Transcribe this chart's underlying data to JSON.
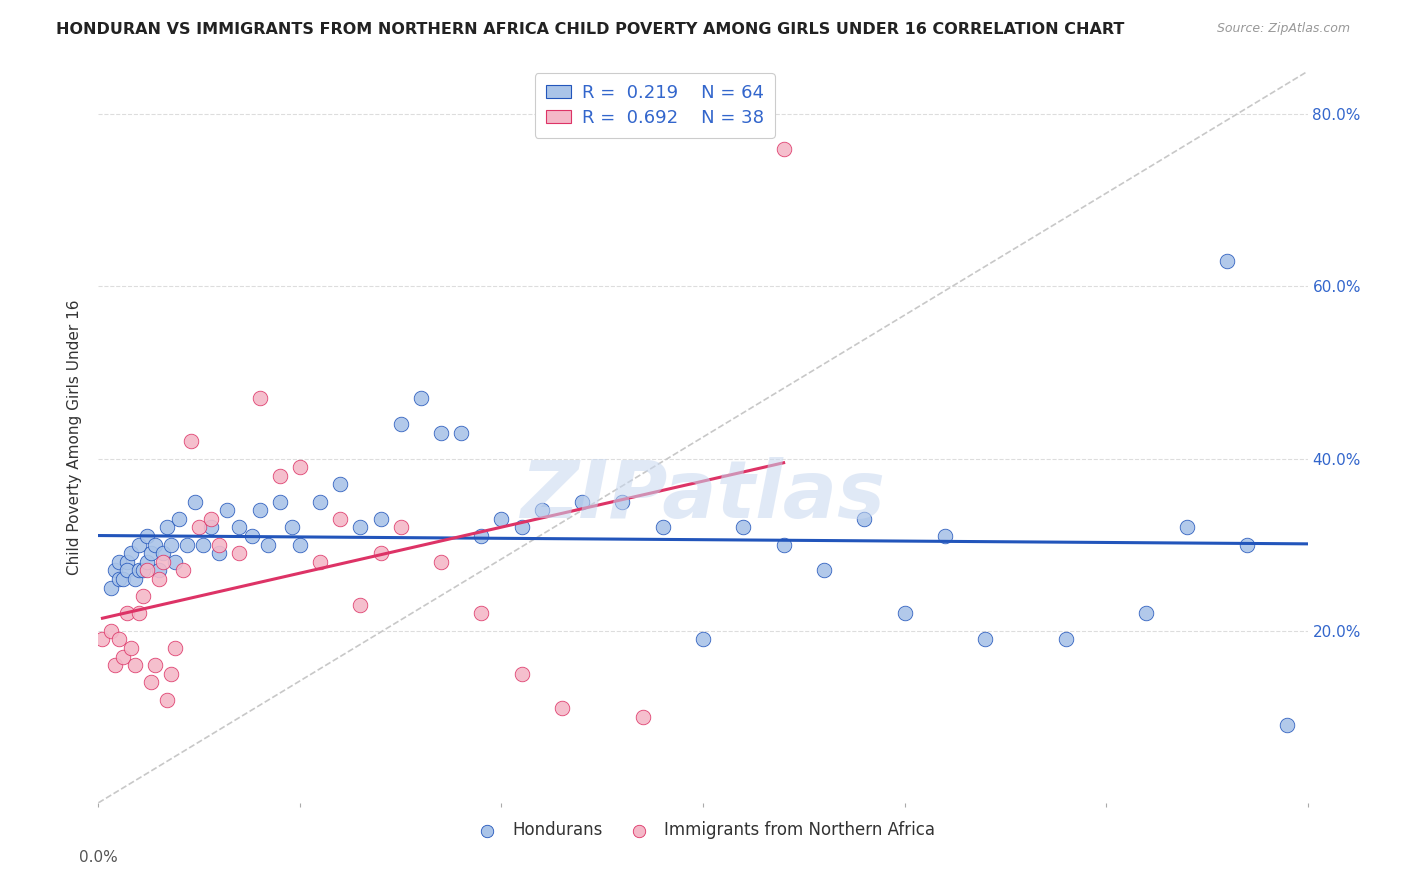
{
  "title": "HONDURAN VS IMMIGRANTS FROM NORTHERN AFRICA CHILD POVERTY AMONG GIRLS UNDER 16 CORRELATION CHART",
  "source": "Source: ZipAtlas.com",
  "ylabel": "Child Poverty Among Girls Under 16",
  "xlim": [
    0.0,
    0.3
  ],
  "ylim": [
    0.0,
    0.85
  ],
  "xticks": [
    0.0,
    0.05,
    0.1,
    0.15,
    0.2,
    0.25,
    0.3
  ],
  "xticklabels_left": "0.0%",
  "yticks": [
    0.0,
    0.2,
    0.4,
    0.6,
    0.8
  ],
  "right_yticklabels": [
    "",
    "20.0%",
    "40.0%",
    "60.0%",
    "80.0%"
  ],
  "legend_r_blue": "0.219",
  "legend_n_blue": "64",
  "legend_r_pink": "0.692",
  "legend_n_pink": "38",
  "blue_color": "#aac4e8",
  "pink_color": "#f4b8c8",
  "trendline_blue": "#2255bb",
  "trendline_pink": "#dd3366",
  "trendline_dashed_color": "#c8c8c8",
  "watermark": "ZIPatlas",
  "blue_x": [
    0.003,
    0.004,
    0.005,
    0.005,
    0.006,
    0.007,
    0.007,
    0.008,
    0.009,
    0.01,
    0.01,
    0.011,
    0.012,
    0.012,
    0.013,
    0.014,
    0.015,
    0.016,
    0.017,
    0.018,
    0.019,
    0.02,
    0.022,
    0.024,
    0.026,
    0.028,
    0.03,
    0.032,
    0.035,
    0.038,
    0.04,
    0.042,
    0.045,
    0.048,
    0.05,
    0.055,
    0.06,
    0.065,
    0.07,
    0.075,
    0.08,
    0.085,
    0.09,
    0.095,
    0.1,
    0.105,
    0.11,
    0.12,
    0.13,
    0.14,
    0.15,
    0.16,
    0.17,
    0.18,
    0.19,
    0.2,
    0.21,
    0.22,
    0.24,
    0.26,
    0.27,
    0.28,
    0.285,
    0.295
  ],
  "blue_y": [
    0.25,
    0.27,
    0.26,
    0.28,
    0.26,
    0.28,
    0.27,
    0.29,
    0.26,
    0.27,
    0.3,
    0.27,
    0.28,
    0.31,
    0.29,
    0.3,
    0.27,
    0.29,
    0.32,
    0.3,
    0.28,
    0.33,
    0.3,
    0.35,
    0.3,
    0.32,
    0.29,
    0.34,
    0.32,
    0.31,
    0.34,
    0.3,
    0.35,
    0.32,
    0.3,
    0.35,
    0.37,
    0.32,
    0.33,
    0.44,
    0.47,
    0.43,
    0.43,
    0.31,
    0.33,
    0.32,
    0.34,
    0.35,
    0.35,
    0.32,
    0.19,
    0.32,
    0.3,
    0.27,
    0.33,
    0.22,
    0.31,
    0.19,
    0.19,
    0.22,
    0.32,
    0.63,
    0.3,
    0.09
  ],
  "pink_x": [
    0.001,
    0.003,
    0.004,
    0.005,
    0.006,
    0.007,
    0.008,
    0.009,
    0.01,
    0.011,
    0.012,
    0.013,
    0.014,
    0.015,
    0.016,
    0.017,
    0.018,
    0.019,
    0.021,
    0.023,
    0.025,
    0.028,
    0.03,
    0.035,
    0.04,
    0.045,
    0.05,
    0.055,
    0.06,
    0.065,
    0.07,
    0.075,
    0.085,
    0.095,
    0.105,
    0.115,
    0.135,
    0.17
  ],
  "pink_y": [
    0.19,
    0.2,
    0.16,
    0.19,
    0.17,
    0.22,
    0.18,
    0.16,
    0.22,
    0.24,
    0.27,
    0.14,
    0.16,
    0.26,
    0.28,
    0.12,
    0.15,
    0.18,
    0.27,
    0.42,
    0.32,
    0.33,
    0.3,
    0.29,
    0.47,
    0.38,
    0.39,
    0.28,
    0.33,
    0.23,
    0.29,
    0.32,
    0.28,
    0.22,
    0.15,
    0.11,
    0.1,
    0.76
  ]
}
